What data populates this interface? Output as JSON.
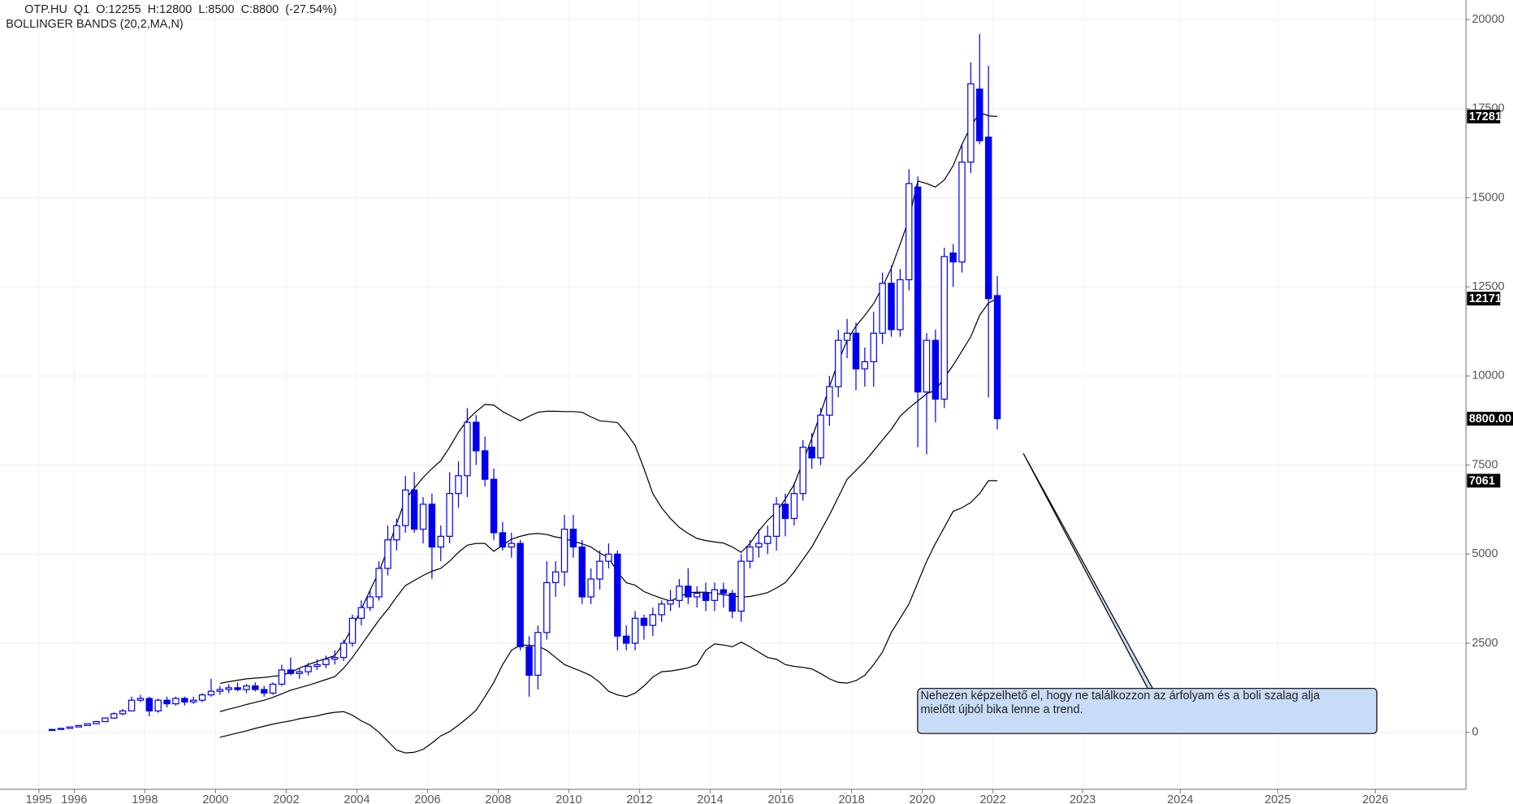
{
  "chart_data": {
    "type": "candlestick",
    "title": "OTP.HU  Q1  O:12255  H:12800  L:8500  C:8800  (-27.54%)",
    "subtitle": "BOLLINGER BANDS (20,2,MA,N)",
    "annotation": [
      "Nehezen képzelhető el, hogy ne találkozzon az árfolyam és a boli szalag alja",
      "mielőtt újból bika lenne a trend."
    ],
    "x": [
      1995.375,
      1995.625,
      1995.875,
      1996.125,
      1996.375,
      1996.625,
      1996.875,
      1997.125,
      1997.375,
      1997.625,
      1997.875,
      1998.125,
      1998.375,
      1998.625,
      1998.875,
      1999.125,
      1999.375,
      1999.625,
      1999.875,
      2000.125,
      2000.375,
      2000.625,
      2000.875,
      2001.125,
      2001.375,
      2001.625,
      2001.875,
      2002.125,
      2002.375,
      2002.625,
      2002.875,
      2003.125,
      2003.375,
      2003.625,
      2003.875,
      2004.125,
      2004.375,
      2004.625,
      2004.875,
      2005.125,
      2005.375,
      2005.625,
      2005.875,
      2006.125,
      2006.375,
      2006.625,
      2006.875,
      2007.125,
      2007.375,
      2007.625,
      2007.875,
      2008.125,
      2008.375,
      2008.625,
      2008.875,
      2009.125,
      2009.375,
      2009.625,
      2009.875,
      2010.125,
      2010.375,
      2010.625,
      2010.875,
      2011.125,
      2011.375,
      2011.625,
      2011.875,
      2012.125,
      2012.375,
      2012.625,
      2012.875,
      2013.125,
      2013.375,
      2013.625,
      2013.875,
      2014.125,
      2014.375,
      2014.625,
      2014.875,
      2015.125,
      2015.375,
      2015.625,
      2015.875,
      2016.125,
      2016.375,
      2016.625,
      2016.875,
      2017.125,
      2017.375,
      2017.625,
      2017.875,
      2018.125,
      2018.375,
      2018.625,
      2018.875,
      2019.125,
      2019.375,
      2019.625,
      2019.875,
      2020.125,
      2020.375,
      2020.625,
      2020.875,
      2021.125,
      2021.375,
      2021.625,
      2021.875,
      2022.125
    ],
    "open": [
      60,
      80,
      110,
      150,
      190,
      240,
      300,
      400,
      520,
      600,
      900,
      950,
      600,
      900,
      800,
      950,
      850,
      900,
      1050,
      1150,
      1200,
      1250,
      1200,
      1300,
      1200,
      1100,
      1350,
      1750,
      1650,
      1700,
      1850,
      1900,
      2050,
      2100,
      2500,
      3200,
      3500,
      3800,
      4600,
      5400,
      5800,
      6800,
      5700,
      6400,
      5200,
      5500,
      6700,
      7200,
      8700,
      7900,
      7100,
      5600,
      5200,
      5300,
      2400,
      1600,
      2800,
      4200,
      4500,
      5700,
      5200,
      3800,
      4300,
      4800,
      5000,
      2700,
      2500,
      3200,
      3000,
      3300,
      3600,
      3700,
      4100,
      3800,
      3900,
      3700,
      4000,
      3900,
      3400,
      4800,
      5200,
      5300,
      5500,
      6400,
      6000,
      6700,
      8000,
      7700,
      8900,
      9700,
      11000,
      11200,
      10200,
      10400,
      11200,
      12600,
      11300,
      12700,
      15300,
      9550,
      11000,
      9350,
      13450,
      13200,
      16000,
      18050,
      16700,
      12255
    ],
    "high": [
      90,
      120,
      160,
      200,
      250,
      320,
      420,
      560,
      650,
      1000,
      1050,
      1000,
      950,
      1000,
      1000,
      1000,
      1000,
      1100,
      1500,
      1300,
      1350,
      1400,
      1350,
      1400,
      1300,
      1400,
      1900,
      2100,
      1800,
      1950,
      2050,
      2150,
      2300,
      2600,
      3300,
      3700,
      4000,
      4800,
      5800,
      6000,
      7200,
      7300,
      6600,
      6700,
      5800,
      7300,
      7600,
      9100,
      8900,
      8300,
      7400,
      5900,
      5600,
      5400,
      2700,
      3000,
      4800,
      4800,
      6100,
      6100,
      5400,
      4600,
      5100,
      5300,
      5100,
      3000,
      3400,
      3300,
      3500,
      3700,
      4000,
      4300,
      4600,
      4100,
      4200,
      4200,
      4200,
      4000,
      5000,
      5400,
      5700,
      5800,
      6600,
      6700,
      7000,
      8200,
      8400,
      9100,
      10000,
      11300,
      11600,
      11500,
      10800,
      11800,
      12900,
      13100,
      13000,
      15800,
      15600,
      11200,
      11300,
      13600,
      13700,
      16500,
      18800,
      19600,
      18700,
      12800
    ],
    "low": [
      50,
      70,
      100,
      140,
      180,
      230,
      290,
      380,
      480,
      580,
      850,
      450,
      550,
      700,
      750,
      750,
      800,
      850,
      1000,
      1050,
      1100,
      1150,
      1100,
      1150,
      1000,
      1050,
      1300,
      1600,
      1500,
      1600,
      1750,
      1800,
      1900,
      2000,
      2400,
      3000,
      3400,
      3700,
      4400,
      5100,
      5600,
      5600,
      5300,
      4300,
      4800,
      5300,
      6300,
      6600,
      7500,
      6900,
      5400,
      5100,
      4900,
      2300,
      1000,
      1200,
      2600,
      3800,
      4100,
      4900,
      3600,
      3600,
      4000,
      4600,
      2300,
      2300,
      2300,
      2600,
      2700,
      3100,
      3400,
      3500,
      3600,
      3500,
      3400,
      3400,
      3500,
      3200,
      3100,
      4600,
      4900,
      5000,
      5100,
      5500,
      5800,
      6500,
      7400,
      7500,
      8600,
      9400,
      10500,
      9600,
      9700,
      9700,
      10900,
      11100,
      11100,
      12400,
      8000,
      7800,
      8700,
      9100,
      12500,
      12900,
      15700,
      16500,
      9400,
      8500
    ],
    "close": [
      80,
      110,
      150,
      190,
      240,
      300,
      400,
      520,
      600,
      900,
      950,
      600,
      900,
      800,
      950,
      850,
      900,
      1050,
      1150,
      1200,
      1250,
      1200,
      1300,
      1200,
      1100,
      1350,
      1750,
      1650,
      1700,
      1850,
      1900,
      2050,
      2100,
      2500,
      3200,
      3500,
      3800,
      4600,
      5400,
      5800,
      6800,
      5700,
      6400,
      5200,
      5500,
      6700,
      7200,
      8700,
      7900,
      7100,
      5600,
      5200,
      5300,
      2400,
      1600,
      2800,
      4200,
      4500,
      5700,
      5200,
      3800,
      4300,
      4800,
      5000,
      2700,
      2500,
      3200,
      3000,
      3300,
      3600,
      3700,
      4100,
      3800,
      3900,
      3700,
      4000,
      3900,
      3400,
      4800,
      5200,
      5300,
      5500,
      6400,
      6000,
      6700,
      8000,
      7700,
      8900,
      9700,
      11000,
      11200,
      10200,
      10400,
      11200,
      12600,
      11300,
      12700,
      15400,
      9550,
      11000,
      9350,
      13350,
      13200,
      16000,
      18200,
      16600,
      12170,
      8800
    ],
    "bands": {
      "color": "#000000",
      "upper": [
        null,
        null,
        null,
        null,
        null,
        null,
        null,
        null,
        null,
        null,
        null,
        null,
        null,
        null,
        null,
        null,
        null,
        null,
        null,
        1370,
        1420,
        1460,
        1500,
        1520,
        1540,
        1570,
        1600,
        1680,
        1800,
        1900,
        1990,
        2070,
        2150,
        2500,
        2950,
        3450,
        3990,
        4500,
        5150,
        5850,
        6550,
        6850,
        7150,
        7400,
        7620,
        8000,
        8420,
        8760,
        9000,
        9200,
        9180,
        9000,
        8870,
        8740,
        8870,
        8980,
        9010,
        9010,
        9000,
        9000,
        8980,
        8850,
        8740,
        8720,
        8690,
        8400,
        8050,
        7400,
        6700,
        6300,
        6000,
        5750,
        5580,
        5440,
        5380,
        5340,
        5310,
        5200,
        5050,
        5300,
        5650,
        5950,
        6180,
        6550,
        6950,
        7600,
        8250,
        8950,
        9700,
        10400,
        11000,
        11400,
        11700,
        12030,
        12500,
        13020,
        13700,
        14400,
        15470,
        15400,
        15300,
        15500,
        15900,
        16500,
        17000,
        17390,
        17300,
        17281
      ],
      "middle": [
        null,
        null,
        null,
        null,
        null,
        null,
        null,
        null,
        null,
        null,
        null,
        null,
        null,
        null,
        null,
        null,
        null,
        null,
        null,
        580,
        650,
        710,
        780,
        840,
        900,
        980,
        1080,
        1180,
        1250,
        1320,
        1400,
        1480,
        1560,
        1800,
        2100,
        2450,
        2800,
        3150,
        3450,
        3800,
        4120,
        4260,
        4400,
        4520,
        4600,
        4800,
        5050,
        5250,
        5300,
        5300,
        5080,
        5250,
        5420,
        5500,
        5560,
        5580,
        5550,
        5480,
        5440,
        5360,
        5290,
        5200,
        5030,
        4900,
        4500,
        4200,
        4130,
        3950,
        3850,
        3760,
        3680,
        3800,
        3920,
        3930,
        3930,
        3900,
        3860,
        3830,
        3790,
        3810,
        3860,
        3920,
        4050,
        4200,
        4500,
        4850,
        5200,
        5650,
        6100,
        6600,
        7100,
        7350,
        7600,
        7900,
        8200,
        8500,
        8870,
        9100,
        9300,
        9500,
        9600,
        9950,
        10300,
        10700,
        11100,
        11700,
        12050,
        12171
      ],
      "lower": [
        null,
        null,
        null,
        null,
        null,
        null,
        null,
        null,
        null,
        null,
        null,
        null,
        null,
        null,
        null,
        null,
        null,
        null,
        null,
        -140,
        -80,
        -20,
        40,
        110,
        170,
        230,
        280,
        320,
        380,
        420,
        460,
        520,
        560,
        580,
        480,
        320,
        200,
        0,
        -250,
        -500,
        -580,
        -560,
        -480,
        -300,
        -100,
        20,
        200,
        400,
        620,
        1000,
        1400,
        1900,
        2300,
        2450,
        2440,
        2420,
        2300,
        2100,
        1900,
        1800,
        1700,
        1590,
        1400,
        1150,
        1050,
        1000,
        1100,
        1300,
        1550,
        1700,
        1720,
        1760,
        1810,
        1900,
        2300,
        2480,
        2450,
        2400,
        2530,
        2400,
        2250,
        2100,
        2050,
        1900,
        1850,
        1820,
        1780,
        1650,
        1500,
        1400,
        1380,
        1450,
        1600,
        1900,
        2250,
        2800,
        3200,
        3600,
        4200,
        4800,
        5300,
        5750,
        6200,
        6300,
        6450,
        6700,
        7061,
        7061
      ]
    },
    "up_color": "#ffffff",
    "down_color": "#0000ee",
    "price_labels": [
      17281,
      12171,
      {
        "value": 8800,
        "label": "8800.00"
      },
      7061
    ],
    "xlim": [
      1993.9,
      2026.93
    ],
    "xticks": [
      1995,
      1996,
      1998,
      2000,
      2002,
      2004,
      2006,
      2008,
      2010,
      2012,
      2014,
      2016,
      2018,
      2020,
      2022,
      2023,
      2024,
      2025,
      2026
    ],
    "ylim": [
      -1600,
      20550
    ],
    "yticks": [
      0,
      2500,
      5000,
      7500,
      10000,
      12500,
      15000,
      17500,
      20000
    ],
    "grid": true
  }
}
